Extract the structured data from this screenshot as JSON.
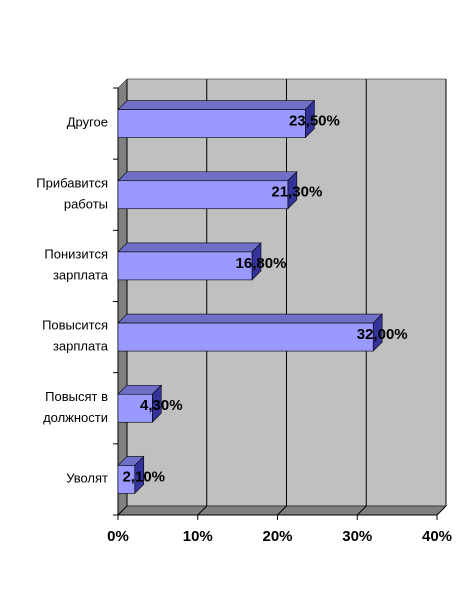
{
  "chart_data": {
    "type": "bar",
    "orientation": "horizontal",
    "categories": [
      "Другое",
      "Прибавится\nработы",
      "Понизится\nзарплата",
      "Повысится\nзарплата",
      "Повысят в\nдолжности",
      "Уволят"
    ],
    "values": [
      23.5,
      21.3,
      16.8,
      32.0,
      4.3,
      2.1
    ],
    "value_labels": [
      "23,50%",
      "21,30%",
      "16,80%",
      "32,00%",
      "4,30%",
      "2,10%"
    ],
    "color": "#9999ff",
    "xlim": [
      0,
      40
    ],
    "xticks": [
      {
        "value": 0,
        "label": "0%"
      },
      {
        "value": 10,
        "label": "10%"
      },
      {
        "value": 20,
        "label": "20%"
      },
      {
        "value": 30,
        "label": "30%"
      },
      {
        "value": 40,
        "label": "40%"
      }
    ],
    "grid": true
  }
}
